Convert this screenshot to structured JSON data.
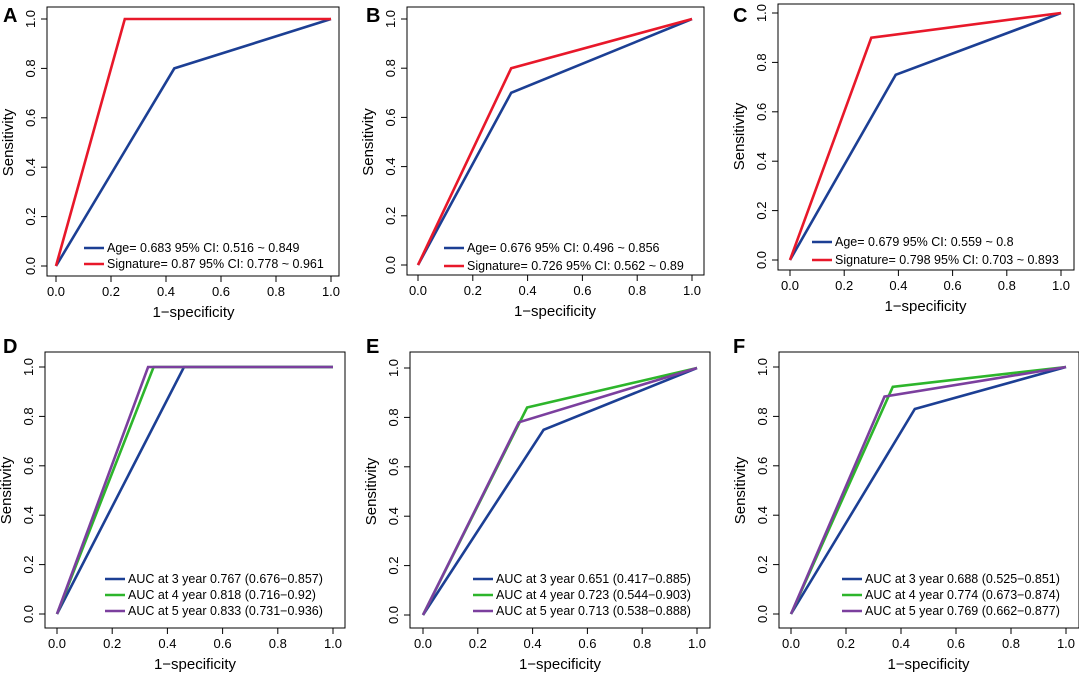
{
  "colors": {
    "blue": "#1c3f94",
    "red": "#e8182a",
    "green": "#2db52b",
    "purple": "#7b3f9e",
    "axis": "#000000"
  },
  "chart_data": [
    {
      "panel": "A",
      "type": "line",
      "xlabel": "1−specificity",
      "ylabel": "Sensitivity",
      "xlim": [
        0,
        1
      ],
      "ylim": [
        0,
        1
      ],
      "xticks": [
        "0.0",
        "0.2",
        "0.4",
        "0.6",
        "0.8",
        "1.0"
      ],
      "yticks": [
        "0.0",
        "0.2",
        "0.4",
        "0.6",
        "0.8",
        "1.0"
      ],
      "series": [
        {
          "name": "Age",
          "color": "blue",
          "x": [
            0,
            0.43,
            1
          ],
          "y": [
            0,
            0.8,
            1
          ],
          "legend": "Age= 0.683  95% CI: 0.516 ~ 0.849"
        },
        {
          "name": "Signature",
          "color": "red",
          "x": [
            0,
            0.25,
            1
          ],
          "y": [
            0,
            1,
            1
          ],
          "legend": "Signature= 0.87  95% CI: 0.778 ~ 0.961"
        }
      ]
    },
    {
      "panel": "B",
      "type": "line",
      "xlabel": "1−specificity",
      "ylabel": "Sensitivity",
      "xlim": [
        0,
        1
      ],
      "ylim": [
        0,
        1
      ],
      "xticks": [
        "0.0",
        "0.2",
        "0.4",
        "0.6",
        "0.8",
        "1.0"
      ],
      "yticks": [
        "0.0",
        "0.2",
        "0.4",
        "0.6",
        "0.8",
        "1.0"
      ],
      "series": [
        {
          "name": "Age",
          "color": "blue",
          "x": [
            0,
            0.34,
            1
          ],
          "y": [
            0,
            0.7,
            1
          ],
          "legend": "Age= 0.676  95% CI: 0.496 ~ 0.856"
        },
        {
          "name": "Signature",
          "color": "red",
          "x": [
            0,
            0.34,
            1
          ],
          "y": [
            0,
            0.8,
            1
          ],
          "legend": "Signature= 0.726  95% CI: 0.562 ~ 0.89"
        }
      ]
    },
    {
      "panel": "C",
      "type": "line",
      "xlabel": "1−specificity",
      "ylabel": "Sensitivity",
      "xlim": [
        0,
        1
      ],
      "ylim": [
        0,
        1
      ],
      "xticks": [
        "0.0",
        "0.2",
        "0.4",
        "0.6",
        "0.8",
        "1.0"
      ],
      "yticks": [
        "0.0",
        "0.2",
        "0.4",
        "0.6",
        "0.8",
        "1.0"
      ],
      "series": [
        {
          "name": "Age",
          "color": "blue",
          "x": [
            0,
            0.39,
            1
          ],
          "y": [
            0,
            0.75,
            1
          ],
          "legend": "Age= 0.679  95% CI: 0.559 ~ 0.8"
        },
        {
          "name": "Signature",
          "color": "red",
          "x": [
            0,
            0.3,
            1
          ],
          "y": [
            0,
            0.9,
            1
          ],
          "legend": "Signature= 0.798  95% CI: 0.703 ~ 0.893"
        }
      ]
    },
    {
      "panel": "D",
      "type": "line",
      "xlabel": "1−specificity",
      "ylabel": "Sensitivity",
      "xlim": [
        0,
        1
      ],
      "ylim": [
        0,
        1
      ],
      "xticks": [
        "0.0",
        "0.2",
        "0.4",
        "0.6",
        "0.8",
        "1.0"
      ],
      "yticks": [
        "0.0",
        "0.2",
        "0.4",
        "0.6",
        "0.8",
        "1.0"
      ],
      "series": [
        {
          "name": "AUC at 3 year",
          "color": "blue",
          "x": [
            0,
            0.46,
            1
          ],
          "y": [
            0,
            1,
            1
          ],
          "legend": "AUC at 3 year 0.767 (0.676−0.857)"
        },
        {
          "name": "AUC at 4 year",
          "color": "green",
          "x": [
            0,
            0.35,
            1
          ],
          "y": [
            0,
            1,
            1
          ],
          "legend": "AUC at 4 year 0.818 (0.716−0.92)"
        },
        {
          "name": "AUC at 5 year",
          "color": "purple",
          "x": [
            0,
            0.33,
            1
          ],
          "y": [
            0,
            1,
            1
          ],
          "legend": "AUC at 5 year 0.833 (0.731−0.936)"
        }
      ]
    },
    {
      "panel": "E",
      "type": "line",
      "xlabel": "1−specificity",
      "ylabel": "Sensitivity",
      "xlim": [
        0,
        1
      ],
      "ylim": [
        0,
        1
      ],
      "xticks": [
        "0.0",
        "0.2",
        "0.4",
        "0.6",
        "0.8",
        "1.0"
      ],
      "yticks": [
        "0.0",
        "0.2",
        "0.4",
        "0.6",
        "0.8",
        "1.0"
      ],
      "series": [
        {
          "name": "AUC at 3 year",
          "color": "blue",
          "x": [
            0,
            0.44,
            1
          ],
          "y": [
            0,
            0.75,
            1
          ],
          "legend": "AUC at 3 year 0.651 (0.417−0.885)"
        },
        {
          "name": "AUC at 4 year",
          "color": "green",
          "x": [
            0,
            0.38,
            1
          ],
          "y": [
            0,
            0.84,
            1
          ],
          "legend": "AUC at 4 year 0.723 (0.544−0.903)"
        },
        {
          "name": "AUC at 5 year",
          "color": "purple",
          "x": [
            0,
            0.35,
            1
          ],
          "y": [
            0,
            0.78,
            1
          ],
          "legend": "AUC at 5 year 0.713 (0.538−0.888)"
        }
      ]
    },
    {
      "panel": "F",
      "type": "line",
      "xlabel": "1−specificity",
      "ylabel": "Sensitivity",
      "xlim": [
        0,
        1
      ],
      "ylim": [
        0,
        1
      ],
      "xticks": [
        "0.0",
        "0.2",
        "0.4",
        "0.6",
        "0.8",
        "1.0"
      ],
      "yticks": [
        "0.0",
        "0.2",
        "0.4",
        "0.6",
        "0.8",
        "1.0"
      ],
      "series": [
        {
          "name": "AUC at 3 year",
          "color": "blue",
          "x": [
            0,
            0.45,
            1
          ],
          "y": [
            0,
            0.83,
            1
          ],
          "legend": "AUC at 3 year 0.688 (0.525−0.851)"
        },
        {
          "name": "AUC at 4 year",
          "color": "green",
          "x": [
            0,
            0.37,
            1
          ],
          "y": [
            0,
            0.92,
            1
          ],
          "legend": "AUC at 4 year 0.774 (0.673−0.874)"
        },
        {
          "name": "AUC at 5 year",
          "color": "purple",
          "x": [
            0,
            0.34,
            1
          ],
          "y": [
            0,
            0.88,
            1
          ],
          "legend": "AUC at 5 year 0.769 (0.662−0.877)"
        }
      ]
    }
  ]
}
